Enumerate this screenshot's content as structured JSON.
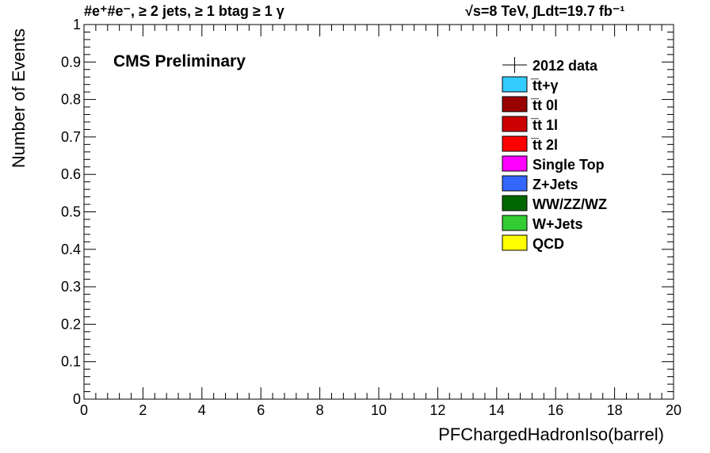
{
  "chart_data": {
    "type": "bar",
    "title_left": "#e⁺#e⁻, ≥ 2 jets, ≥ 1 btag ≥ 1 γ",
    "title_right": "√s=8 TeV,  ∫Ldt=19.7 fb⁻¹",
    "label": "CMS Preliminary",
    "xlabel": "PFChargedHadronIso(barrel)",
    "ylabel": "Number of Events",
    "xlim": [
      0,
      20
    ],
    "ylim": [
      0,
      1
    ],
    "x_ticks": [
      "0",
      "2",
      "4",
      "6",
      "8",
      "10",
      "12",
      "14",
      "16",
      "18",
      "20"
    ],
    "y_ticks": [
      "0",
      "0.1",
      "0.2",
      "0.3",
      "0.4",
      "0.5",
      "0.6",
      "0.7",
      "0.8",
      "0.9",
      "1"
    ],
    "grid": false,
    "legend_position": "top-right",
    "legend": [
      {
        "name": "2012 data",
        "marker": "data",
        "color": "#000000"
      },
      {
        "name": "t̅t+γ",
        "marker": "box",
        "color": "#33ccff"
      },
      {
        "name": "t̅t 0l",
        "marker": "box",
        "color": "#990000"
      },
      {
        "name": "t̅t 1l",
        "marker": "box",
        "color": "#cc0000"
      },
      {
        "name": "t̅t 2l",
        "marker": "box",
        "color": "#ff0000"
      },
      {
        "name": "Single Top",
        "marker": "box",
        "color": "#ff00ff"
      },
      {
        "name": "Z+Jets",
        "marker": "box",
        "color": "#3366ff"
      },
      {
        "name": "WW/ZZ/WZ",
        "marker": "box",
        "color": "#006600"
      },
      {
        "name": "W+Jets",
        "marker": "box",
        "color": "#33cc33"
      },
      {
        "name": "QCD",
        "marker": "box",
        "color": "#ffff00"
      }
    ],
    "series": []
  }
}
